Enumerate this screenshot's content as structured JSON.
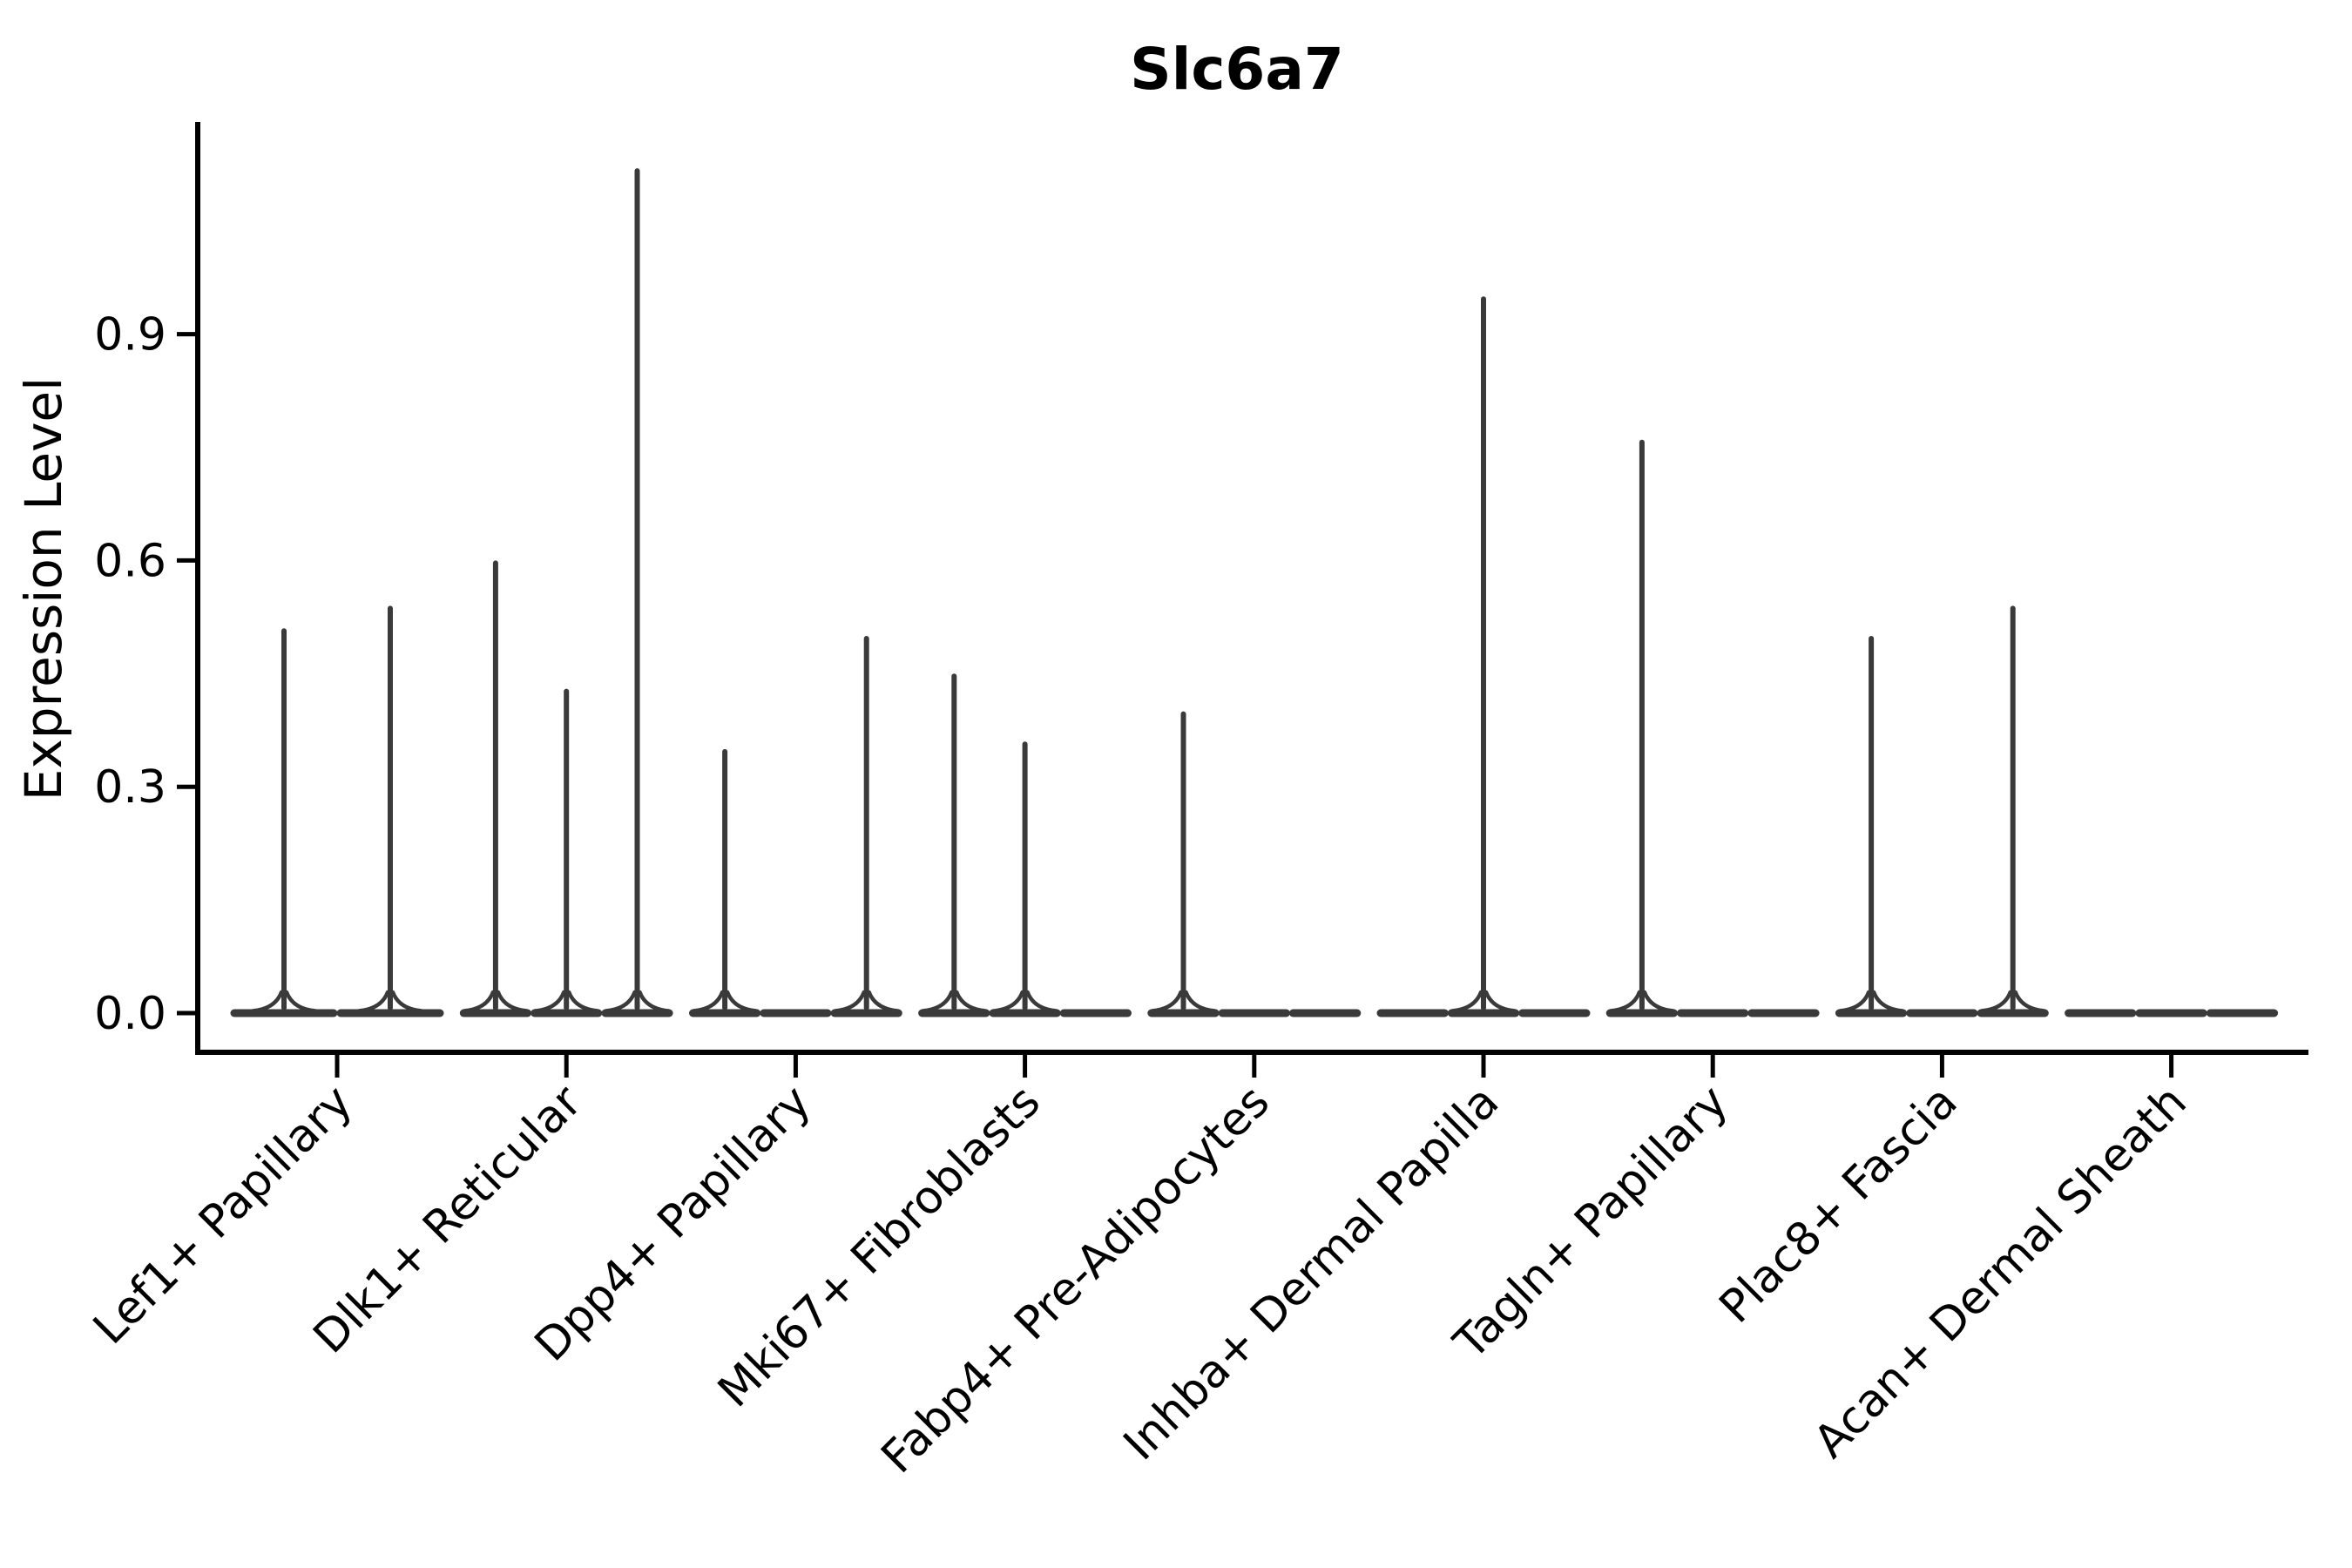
{
  "figure": {
    "background": "#ffffff"
  },
  "chart_data": {
    "type": "violin",
    "title": "Slc6a7",
    "xlabel": "",
    "ylabel": "Expression Level",
    "legend": "none",
    "grid": false,
    "ylim": [
      -0.05,
      1.18
    ],
    "yticks": [
      0,
      0.3,
      0.6,
      0.9
    ],
    "ytick_labels": [
      "0.0",
      "0.3",
      "0.6",
      "0.9"
    ],
    "violin_line_color": "#3a3a3a",
    "axis_color": "#000000",
    "description": "Stacked-violin style gene expression plot; each cell-type category contains 2-3 collapsed violins (flat base at 0 with a thin density spike up to the max expression value).",
    "categories": [
      {
        "label": "Lef1+ Papillary",
        "violins": [
          {
            "pos": -0.225,
            "max": 0.51
          },
          {
            "pos": 0.225,
            "max": 0.54
          }
        ]
      },
      {
        "label": "Dlk1+ Reticular",
        "violins": [
          {
            "pos": -0.3,
            "max": 0.6
          },
          {
            "pos": 0.0,
            "max": 0.43
          },
          {
            "pos": 0.3,
            "max": 1.12
          }
        ]
      },
      {
        "label": "Dpp4+ Papillary",
        "violins": [
          {
            "pos": -0.3,
            "max": 0.35
          },
          {
            "pos": 0.0,
            "max": 0
          },
          {
            "pos": 0.3,
            "max": 0.5
          }
        ]
      },
      {
        "label": "Mki67+ Fibroblasts",
        "violins": [
          {
            "pos": -0.3,
            "max": 0.45
          },
          {
            "pos": 0.0,
            "max": 0.36
          },
          {
            "pos": 0.3,
            "max": 0
          }
        ]
      },
      {
        "label": "Fabp4+ Pre-Adipocytes",
        "violins": [
          {
            "pos": -0.3,
            "max": 0.4
          },
          {
            "pos": 0.0,
            "max": 0
          },
          {
            "pos": 0.3,
            "max": 0
          }
        ]
      },
      {
        "label": "Inhba+ Dermal Papilla",
        "violins": [
          {
            "pos": -0.3,
            "max": 0
          },
          {
            "pos": 0.0,
            "max": 0.95
          },
          {
            "pos": 0.3,
            "max": 0
          }
        ]
      },
      {
        "label": "Tagln+ Papillary",
        "violins": [
          {
            "pos": -0.3,
            "max": 0.76
          },
          {
            "pos": 0.0,
            "max": 0
          },
          {
            "pos": 0.3,
            "max": 0
          }
        ]
      },
      {
        "label": "Plac8+ Fascia",
        "violins": [
          {
            "pos": -0.3,
            "max": 0.5
          },
          {
            "pos": 0.0,
            "max": 0
          },
          {
            "pos": 0.3,
            "max": 0.54
          }
        ]
      },
      {
        "label": "Acan+ Dermal Sheath",
        "violins": [
          {
            "pos": -0.3,
            "max": 0
          },
          {
            "pos": 0.0,
            "max": 0
          },
          {
            "pos": 0.3,
            "max": 0
          }
        ]
      }
    ],
    "base_halfwidth": 0.45
  }
}
